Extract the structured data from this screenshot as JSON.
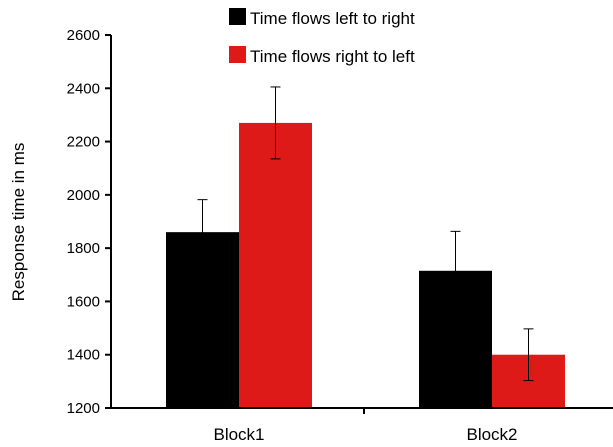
{
  "chart_data": {
    "type": "bar",
    "title": "",
    "xlabel": "",
    "ylabel": "Response time in ms",
    "categories": [
      "Block1",
      "Block2"
    ],
    "ylim": [
      1200,
      2600
    ],
    "yticks": [
      1200,
      1400,
      1600,
      1800,
      2000,
      2200,
      2400,
      2600
    ],
    "grid": false,
    "legend_position": "top",
    "series": [
      {
        "name": "Time flows left to right",
        "color": "#000000",
        "values": [
          1860,
          1715
        ],
        "error": [
          122,
          148
        ]
      },
      {
        "name": "Time flows right to left",
        "color": "#dd1a17",
        "values": [
          2270,
          1400
        ],
        "error": [
          135,
          97
        ]
      }
    ]
  }
}
